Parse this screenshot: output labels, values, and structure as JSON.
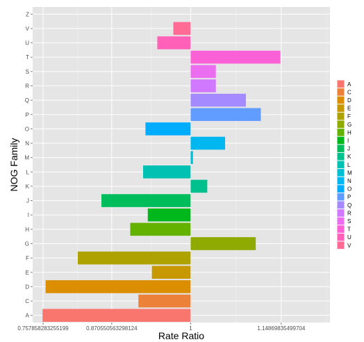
{
  "chart_data": {
    "type": "bar",
    "orientation": "horizontal",
    "xlabel": "Rate Ratio",
    "ylabel": "NOG Family",
    "xlim": [
      0.7407,
      1.2287
    ],
    "baseline": 1.0,
    "x_ticks": [
      {
        "value": 0.757858283255199,
        "label": "0.757858283255199"
      },
      {
        "value": 0.870550563298124,
        "label": "0.870550563298124"
      },
      {
        "value": 1.0,
        "label": "1"
      },
      {
        "value": 1.14869835499704,
        "label": "1.14869835499704"
      }
    ],
    "categories": [
      "A",
      "C",
      "D",
      "E",
      "F",
      "G",
      "H",
      "I",
      "J",
      "K",
      "L",
      "M",
      "N",
      "O",
      "P",
      "Q",
      "R",
      "S",
      "T",
      "U",
      "V",
      "Z"
    ],
    "values": [
      0.757,
      0.9143,
      0.762,
      0.9364,
      0.8148,
      1.1069,
      0.9009,
      0.9297,
      0.8536,
      1.0273,
      0.922,
      1.0038,
      1.0566,
      0.9259,
      1.1152,
      1.0907,
      1.0414,
      1.0414,
      1.1474,
      0.9453,
      0.9716,
      1.0
    ],
    "colors": [
      "#F8766D",
      "#EC8239",
      "#DB8E00",
      "#C79800",
      "#AEA200",
      "#8FAA00",
      "#64B200",
      "#00B81B",
      "#00BD5C",
      "#00C08D",
      "#00C1B2",
      "#00BFD4",
      "#00B8EF",
      "#00ACFC",
      "#619CFF",
      "#A58AFF",
      "#D078FF",
      "#EB6EF0",
      "#FB61D7",
      "#FF61B8",
      "#FF6B95"
    ],
    "legend": {
      "position": "right",
      "entries": [
        "A",
        "C",
        "D",
        "E",
        "F",
        "G",
        "H",
        "I",
        "J",
        "K",
        "L",
        "M",
        "N",
        "O",
        "P",
        "Q",
        "R",
        "S",
        "T",
        "U",
        "V"
      ]
    },
    "grid": true,
    "panel_background": "#E5E5E5",
    "grid_color": "#FFFFFF"
  }
}
